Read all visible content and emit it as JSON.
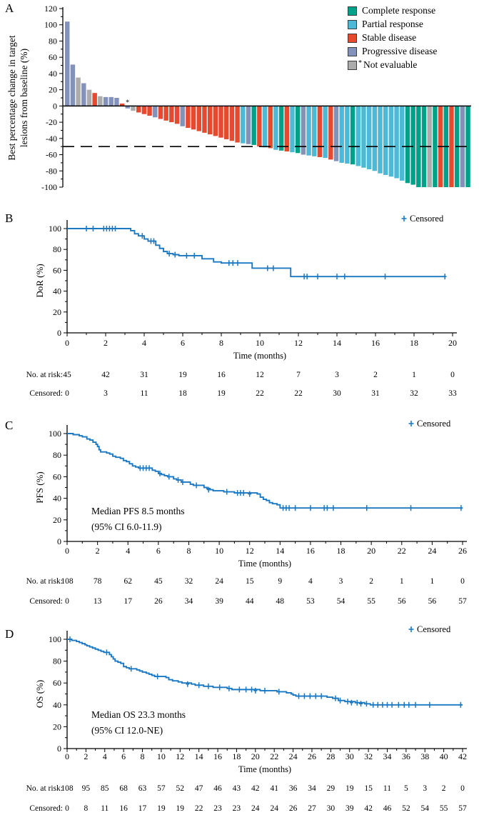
{
  "figure": {
    "panels": [
      {
        "letter": "A"
      },
      {
        "letter": "B"
      },
      {
        "letter": "C"
      },
      {
        "letter": "D"
      }
    ]
  },
  "colors": {
    "curve_blue": "#1B78C2",
    "axis_black": "#000000"
  },
  "chart_data": [
    {
      "type": "bar",
      "panel": "A",
      "subtype": "waterfall",
      "ylabel_lines": [
        "Best percentage change in target",
        "lesions from baseline (%)"
      ],
      "ylim": [
        -100,
        120
      ],
      "ytick_step": 20,
      "reference_line_y": -50,
      "asterisk_after_bar_index": 10,
      "legend": [
        {
          "key": "CR",
          "label": "Complete response",
          "color": "#00A189"
        },
        {
          "key": "PR",
          "label": "Partial response",
          "color": "#4CB9D6"
        },
        {
          "key": "SD",
          "label": "Stable disease",
          "color": "#E5492E"
        },
        {
          "key": "PD",
          "label": "Progressive disease",
          "color": "#8392BB"
        },
        {
          "key": "NE",
          "label": "Not evaluable",
          "color": "#ACACAC",
          "asterisk": true
        }
      ],
      "bars": [
        [
          104,
          "PD"
        ],
        [
          51,
          "PD"
        ],
        [
          35,
          "NE"
        ],
        [
          28,
          "PD"
        ],
        [
          20,
          "NE"
        ],
        [
          16,
          "SD"
        ],
        [
          12,
          "NE"
        ],
        [
          11,
          "PD"
        ],
        [
          11,
          "PD"
        ],
        [
          10,
          "PD"
        ],
        [
          3,
          "SD"
        ],
        [
          -3,
          "PD"
        ],
        [
          -6,
          "NE"
        ],
        [
          -8,
          "SD"
        ],
        [
          -10,
          "SD"
        ],
        [
          -12,
          "SD"
        ],
        [
          -14,
          "PD"
        ],
        [
          -16,
          "SD"
        ],
        [
          -18,
          "SD"
        ],
        [
          -20,
          "SD"
        ],
        [
          -22,
          "SD"
        ],
        [
          -25,
          "PD"
        ],
        [
          -27,
          "SD"
        ],
        [
          -29,
          "SD"
        ],
        [
          -31,
          "SD"
        ],
        [
          -33,
          "SD"
        ],
        [
          -35,
          "SD"
        ],
        [
          -37,
          "SD"
        ],
        [
          -39,
          "SD"
        ],
        [
          -41,
          "SD"
        ],
        [
          -43,
          "SD"
        ],
        [
          -45,
          "SD"
        ],
        [
          -46,
          "PR"
        ],
        [
          -47,
          "PD"
        ],
        [
          -48,
          "CR"
        ],
        [
          -50,
          "SD"
        ],
        [
          -51,
          "PR"
        ],
        [
          -52,
          "SD"
        ],
        [
          -54,
          "PR"
        ],
        [
          -55,
          "CR"
        ],
        [
          -56,
          "SD"
        ],
        [
          -57,
          "PR"
        ],
        [
          -58,
          "CR"
        ],
        [
          -60,
          "PD"
        ],
        [
          -61,
          "PR"
        ],
        [
          -62,
          "PR"
        ],
        [
          -63,
          "SD"
        ],
        [
          -64,
          "PR"
        ],
        [
          -66,
          "SD"
        ],
        [
          -68,
          "PD"
        ],
        [
          -70,
          "PR"
        ],
        [
          -71,
          "PR"
        ],
        [
          -72,
          "CR"
        ],
        [
          -74,
          "PR"
        ],
        [
          -76,
          "PR"
        ],
        [
          -78,
          "PR"
        ],
        [
          -80,
          "PR"
        ],
        [
          -83,
          "PR"
        ],
        [
          -85,
          "PR"
        ],
        [
          -87,
          "PR"
        ],
        [
          -89,
          "PR"
        ],
        [
          -92,
          "PR"
        ],
        [
          -95,
          "CR"
        ],
        [
          -97,
          "CR"
        ],
        [
          -100,
          "CR"
        ],
        [
          -100,
          "CR"
        ],
        [
          -100,
          "NE"
        ],
        [
          -100,
          "CR"
        ],
        [
          -100,
          "SD"
        ],
        [
          -100,
          "CR"
        ],
        [
          -100,
          "SD"
        ],
        [
          -100,
          "CR"
        ],
        [
          -100,
          "PD"
        ],
        [
          -100,
          "CR"
        ]
      ]
    },
    {
      "type": "line",
      "panel": "B",
      "subtype": "kaplan-meier",
      "ylabel": "DoR (%)",
      "xlabel": "Time (months)",
      "censored_legend": "Censored",
      "ylim": [
        0,
        100
      ],
      "xlim": [
        0,
        20
      ],
      "xtick_step": 2,
      "end_time": 19.6,
      "steps": [
        [
          0,
          100
        ],
        [
          3.3,
          98
        ],
        [
          3.5,
          95
        ],
        [
          3.7,
          93
        ],
        [
          4.0,
          90
        ],
        [
          4.2,
          88
        ],
        [
          4.6,
          84
        ],
        [
          4.8,
          81
        ],
        [
          5.0,
          78
        ],
        [
          5.2,
          76
        ],
        [
          5.5,
          75
        ],
        [
          5.8,
          74
        ],
        [
          7.0,
          71
        ],
        [
          7.6,
          68
        ],
        [
          8.0,
          67
        ],
        [
          9.6,
          62
        ],
        [
          11.6,
          54
        ]
      ],
      "censor_marks": [
        [
          1.0,
          100
        ],
        [
          1.35,
          100
        ],
        [
          1.9,
          100
        ],
        [
          2.05,
          100
        ],
        [
          2.2,
          100
        ],
        [
          2.35,
          100
        ],
        [
          2.5,
          100
        ],
        [
          3.9,
          93
        ],
        [
          4.35,
          88
        ],
        [
          4.5,
          88
        ],
        [
          5.3,
          76
        ],
        [
          5.6,
          75
        ],
        [
          6.2,
          74
        ],
        [
          6.6,
          74
        ],
        [
          8.4,
          67
        ],
        [
          8.6,
          67
        ],
        [
          8.85,
          67
        ],
        [
          10.4,
          62
        ],
        [
          10.7,
          62
        ],
        [
          12.3,
          54
        ],
        [
          12.45,
          54
        ],
        [
          13.0,
          54
        ],
        [
          14.0,
          54
        ],
        [
          14.4,
          54
        ],
        [
          16.5,
          54
        ],
        [
          19.6,
          54
        ]
      ],
      "at_risk": {
        "label": "No. at risk:",
        "values": [
          45,
          42,
          31,
          19,
          16,
          12,
          7,
          3,
          2,
          1,
          0
        ]
      },
      "censored": {
        "label": "Censored:",
        "values": [
          0,
          3,
          11,
          18,
          19,
          22,
          22,
          30,
          31,
          32,
          33
        ]
      }
    },
    {
      "type": "line",
      "panel": "C",
      "subtype": "kaplan-meier",
      "ylabel": "PFS (%)",
      "xlabel": "Time (months)",
      "censored_legend": "Censored",
      "annotation_lines": [
        "Median PFS 8.5 months",
        "(95% CI 6.0-11.9)"
      ],
      "ylim": [
        0,
        100
      ],
      "xlim": [
        0,
        26
      ],
      "xtick_step": 2,
      "end_time": 26.0,
      "steps": [
        [
          0,
          100
        ],
        [
          0.4,
          99
        ],
        [
          0.8,
          98
        ],
        [
          1.0,
          97
        ],
        [
          1.3,
          95
        ],
        [
          1.5,
          94
        ],
        [
          1.7,
          92
        ],
        [
          1.9,
          90
        ],
        [
          2.0,
          88
        ],
        [
          2.1,
          85
        ],
        [
          2.2,
          83
        ],
        [
          2.6,
          82
        ],
        [
          2.8,
          81
        ],
        [
          3.0,
          79
        ],
        [
          3.2,
          78
        ],
        [
          3.5,
          77
        ],
        [
          3.7,
          75
        ],
        [
          3.9,
          74
        ],
        [
          4.1,
          72
        ],
        [
          4.3,
          70
        ],
        [
          4.5,
          69
        ],
        [
          4.7,
          68
        ],
        [
          5.6,
          66
        ],
        [
          5.8,
          65
        ],
        [
          6.0,
          63
        ],
        [
          6.2,
          62
        ],
        [
          6.4,
          61
        ],
        [
          6.6,
          60
        ],
        [
          7.0,
          58
        ],
        [
          7.2,
          57
        ],
        [
          7.5,
          55
        ],
        [
          8.1,
          53
        ],
        [
          8.3,
          52
        ],
        [
          9.0,
          50
        ],
        [
          9.2,
          49
        ],
        [
          9.4,
          48
        ],
        [
          9.6,
          47
        ],
        [
          10.3,
          46
        ],
        [
          11.0,
          45
        ],
        [
          12.5,
          44
        ],
        [
          12.7,
          41
        ],
        [
          12.9,
          39
        ],
        [
          13.1,
          38
        ],
        [
          13.3,
          36
        ],
        [
          13.5,
          35
        ],
        [
          13.8,
          34
        ],
        [
          14.0,
          31
        ]
      ],
      "censor_marks": [
        [
          4.8,
          68
        ],
        [
          5.0,
          68
        ],
        [
          5.2,
          68
        ],
        [
          5.4,
          68
        ],
        [
          6.1,
          63
        ],
        [
          6.7,
          60
        ],
        [
          7.3,
          57
        ],
        [
          7.6,
          55
        ],
        [
          8.5,
          52
        ],
        [
          9.3,
          48
        ],
        [
          10.5,
          46
        ],
        [
          11.2,
          45
        ],
        [
          11.4,
          45
        ],
        [
          11.6,
          45
        ],
        [
          12.0,
          44
        ],
        [
          14.2,
          31
        ],
        [
          14.4,
          31
        ],
        [
          14.6,
          31
        ],
        [
          15.0,
          31
        ],
        [
          16.0,
          31
        ],
        [
          16.9,
          31
        ],
        [
          17.1,
          31
        ],
        [
          17.5,
          31
        ],
        [
          19.7,
          31
        ],
        [
          22.6,
          31
        ],
        [
          25.9,
          31
        ]
      ],
      "at_risk": {
        "label": "No. at risk:",
        "values": [
          108,
          78,
          62,
          45,
          32,
          24,
          15,
          9,
          4,
          3,
          2,
          1,
          1,
          0
        ]
      },
      "censored": {
        "label": "Censored:",
        "values": [
          0,
          13,
          17,
          26,
          34,
          39,
          44,
          48,
          53,
          54,
          55,
          56,
          56,
          57
        ]
      }
    },
    {
      "type": "line",
      "panel": "D",
      "subtype": "kaplan-meier",
      "ylabel": "OS (%)",
      "xlabel": "Time (months)",
      "censored_legend": "Censored",
      "annotation_lines": [
        "Median OS 23.3 months",
        "(95% CI 12.0-NE)"
      ],
      "ylim": [
        0,
        100
      ],
      "xlim": [
        0,
        42
      ],
      "xtick_step": 2,
      "end_time": 42.0,
      "steps": [
        [
          0,
          100
        ],
        [
          0.5,
          99
        ],
        [
          1.0,
          98
        ],
        [
          1.3,
          97
        ],
        [
          1.6,
          96
        ],
        [
          1.9,
          95
        ],
        [
          2.1,
          94
        ],
        [
          2.4,
          93
        ],
        [
          2.7,
          92
        ],
        [
          3.0,
          91
        ],
        [
          3.3,
          90
        ],
        [
          3.6,
          89
        ],
        [
          3.9,
          88
        ],
        [
          4.5,
          86
        ],
        [
          4.7,
          84
        ],
        [
          4.9,
          82
        ],
        [
          5.1,
          80
        ],
        [
          5.4,
          79
        ],
        [
          5.7,
          78
        ],
        [
          6.0,
          75
        ],
        [
          6.3,
          74
        ],
        [
          6.6,
          73
        ],
        [
          7.4,
          72
        ],
        [
          7.7,
          71
        ],
        [
          8.0,
          70
        ],
        [
          8.4,
          69
        ],
        [
          8.7,
          68
        ],
        [
          9.0,
          67
        ],
        [
          9.3,
          66
        ],
        [
          10.5,
          65
        ],
        [
          10.8,
          63
        ],
        [
          11.2,
          62
        ],
        [
          11.8,
          61
        ],
        [
          12.2,
          60
        ],
        [
          13.2,
          59
        ],
        [
          13.6,
          58
        ],
        [
          14.5,
          57
        ],
        [
          15.5,
          56
        ],
        [
          17.0,
          55
        ],
        [
          17.5,
          54
        ],
        [
          20.5,
          53
        ],
        [
          22.3,
          52
        ],
        [
          23.3,
          51
        ],
        [
          23.8,
          50
        ],
        [
          24.0,
          49
        ],
        [
          24.3,
          48
        ],
        [
          27.6,
          47
        ],
        [
          28.2,
          46
        ],
        [
          28.8,
          44
        ],
        [
          29.5,
          43
        ],
        [
          30.6,
          42
        ],
        [
          31.6,
          41
        ],
        [
          32.2,
          40
        ]
      ],
      "censor_marks": [
        [
          0.3,
          100
        ],
        [
          4.2,
          88
        ],
        [
          6.8,
          73
        ],
        [
          9.6,
          66
        ],
        [
          12.8,
          59
        ],
        [
          14.0,
          58
        ],
        [
          15.0,
          57
        ],
        [
          16.2,
          56
        ],
        [
          17.2,
          55
        ],
        [
          18.3,
          54
        ],
        [
          19.0,
          54
        ],
        [
          19.6,
          54
        ],
        [
          20.0,
          53
        ],
        [
          21.0,
          53
        ],
        [
          22.5,
          52
        ],
        [
          24.6,
          48
        ],
        [
          25.2,
          48
        ],
        [
          25.8,
          48
        ],
        [
          26.4,
          48
        ],
        [
          27.0,
          48
        ],
        [
          28.5,
          46
        ],
        [
          29.0,
          44
        ],
        [
          29.8,
          43
        ],
        [
          30.2,
          42
        ],
        [
          30.8,
          42
        ],
        [
          31.2,
          41
        ],
        [
          31.8,
          41
        ],
        [
          32.5,
          40
        ],
        [
          33.0,
          40
        ],
        [
          33.5,
          40
        ],
        [
          34.0,
          40
        ],
        [
          34.5,
          40
        ],
        [
          35.2,
          40
        ],
        [
          35.8,
          40
        ],
        [
          36.3,
          40
        ],
        [
          37.0,
          40
        ],
        [
          38.5,
          40
        ],
        [
          41.8,
          40
        ]
      ],
      "at_risk": {
        "label": "No. at risk:",
        "values": [
          108,
          95,
          85,
          68,
          63,
          57,
          52,
          47,
          46,
          43,
          42,
          41,
          36,
          34,
          29,
          19,
          15,
          11,
          5,
          3,
          2,
          0
        ]
      },
      "censored": {
        "label": "Censored:",
        "values": [
          0,
          8,
          11,
          16,
          17,
          19,
          19,
          22,
          23,
          23,
          24,
          24,
          26,
          27,
          30,
          39,
          42,
          46,
          52,
          54,
          55,
          57
        ]
      }
    }
  ]
}
